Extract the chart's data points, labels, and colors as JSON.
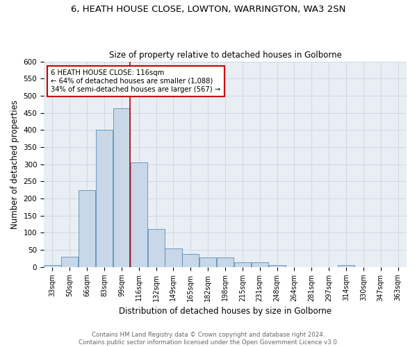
{
  "title": "6, HEATH HOUSE CLOSE, LOWTON, WARRINGTON, WA3 2SN",
  "subtitle": "Size of property relative to detached houses in Golborne",
  "xlabel": "Distribution of detached houses by size in Golborne",
  "ylabel": "Number of detached properties",
  "categories": [
    "33sqm",
    "50sqm",
    "66sqm",
    "83sqm",
    "99sqm",
    "116sqm",
    "132sqm",
    "149sqm",
    "165sqm",
    "182sqm",
    "198sqm",
    "215sqm",
    "231sqm",
    "248sqm",
    "264sqm",
    "281sqm",
    "297sqm",
    "314sqm",
    "330sqm",
    "347sqm",
    "363sqm"
  ],
  "values": [
    5,
    30,
    225,
    400,
    463,
    305,
    110,
    53,
    38,
    28,
    28,
    13,
    13,
    5,
    0,
    0,
    0,
    5,
    0,
    0,
    0
  ],
  "bar_color": "#c8d8e8",
  "bar_edge_color": "#5b8db8",
  "grid_color": "#d0d8e0",
  "bg_color": "#e8eef4",
  "property_line_color": "#cc0000",
  "annotation_text": "6 HEATH HOUSE CLOSE: 116sqm\n← 64% of detached houses are smaller (1,088)\n34% of semi-detached houses are larger (567) →",
  "annotation_box_color": "#cc0000",
  "footer_text": "Contains HM Land Registry data © Crown copyright and database right 2024.\nContains public sector information licensed under the Open Government Licence v3.0.",
  "ylim": [
    0,
    600
  ],
  "yticks": [
    0,
    50,
    100,
    150,
    200,
    250,
    300,
    350,
    400,
    450,
    500,
    550,
    600
  ]
}
